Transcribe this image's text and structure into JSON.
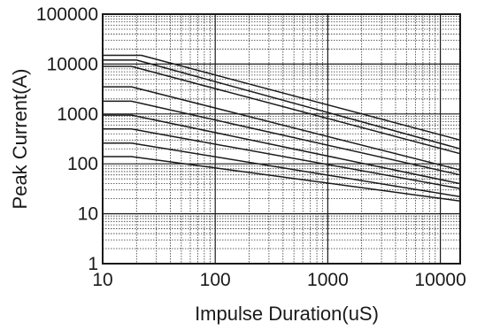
{
  "chart_data": {
    "type": "line",
    "title": "",
    "xlabel": "Impulse Duration(uS)",
    "ylabel": "Peak Current(A)",
    "x_scale": "log",
    "y_scale": "log",
    "xlim": [
      10,
      15000
    ],
    "ylim": [
      1,
      100000
    ],
    "x_ticks": [
      {
        "value": 10,
        "label": "10"
      },
      {
        "value": 100,
        "label": "100"
      },
      {
        "value": 1000,
        "label": "1000"
      },
      {
        "value": 10000,
        "label": "10000"
      }
    ],
    "y_ticks": [
      {
        "value": 1,
        "label": "1"
      },
      {
        "value": 10,
        "label": "10"
      },
      {
        "value": 100,
        "label": "100"
      },
      {
        "value": 1000,
        "label": "1000"
      },
      {
        "value": 10000,
        "label": "10000"
      },
      {
        "value": 100000,
        "label": "100000"
      }
    ],
    "grid": true,
    "legend": "none",
    "line_color": "#1a1a1a",
    "series": [
      {
        "x": [
          10,
          22,
          15000
        ],
        "y": [
          15000,
          15000,
          300
        ]
      },
      {
        "x": [
          10,
          20,
          15000
        ],
        "y": [
          12000,
          12000,
          200
        ]
      },
      {
        "x": [
          10,
          18,
          15000
        ],
        "y": [
          9000,
          9000,
          160
        ]
      },
      {
        "x": [
          10,
          18,
          15000
        ],
        "y": [
          3500,
          3500,
          75
        ]
      },
      {
        "x": [
          10,
          18,
          15000
        ],
        "y": [
          1800,
          1800,
          60
        ]
      },
      {
        "x": [
          10,
          18,
          15000
        ],
        "y": [
          950,
          950,
          40
        ]
      },
      {
        "x": [
          10,
          18,
          15000
        ],
        "y": [
          500,
          500,
          32
        ]
      },
      {
        "x": [
          10,
          18,
          15000
        ],
        "y": [
          260,
          260,
          22
        ]
      },
      {
        "x": [
          10,
          18,
          15000
        ],
        "y": [
          140,
          140,
          18
        ]
      }
    ]
  }
}
